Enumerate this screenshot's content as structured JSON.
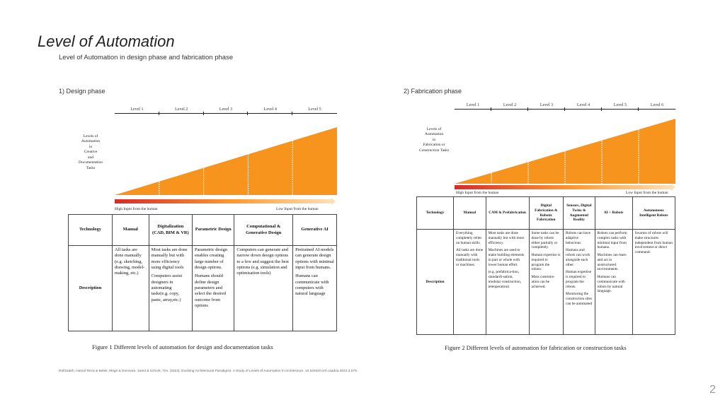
{
  "slide": {
    "title": "Level of Automation",
    "subtitle": "Level of Automation in design phase and fabrication phase",
    "footnote": "Rafizadeh, Hamid Reza & Belek, Müge & Donovan, Jared & Schork, Tim. (2024). Evolving Architectural Paradigms: A Study of Levels of Automation in Architecture. 10.52842/conf.caadria.2024.3.079.",
    "page_number": "2"
  },
  "design": {
    "heading": "1)   Design phase",
    "levels": [
      "Level 1",
      "Level 2",
      "Level 3",
      "Level 4",
      "Level 5"
    ],
    "side_label_lines": [
      "Levels of",
      "Automation",
      "in",
      "Creative",
      "and",
      "Documentation",
      "Tasks"
    ],
    "high_input": "High Input from the human",
    "low_input": "Low Input from the human",
    "table": {
      "technology_label": "Technology",
      "description_label": "Description",
      "columns": [
        {
          "header": "Manual",
          "desc": [
            "All tasks are done manually (e.g. sketching, drawing, model-making, etc.)"
          ]
        },
        {
          "header": "Digitalization (CAD, BIM & VR)",
          "desc": [
            "Most tasks are done manually but with more efficiency using digital tools",
            "Computers assist designers in automating tasks(e.g. copy, paste, array,etc.)"
          ]
        },
        {
          "header": "Parametric Design",
          "desc": [
            "Parametric design enables creating large number of design options.",
            "Humans should define design parameters and select the desired outcome from options"
          ]
        },
        {
          "header": "Computational & Generative Design",
          "desc": [
            "Computers can generate and narrow down design options to a few and suggest the best options (e.g. simulation and optimisation tools)"
          ]
        },
        {
          "header": "Generative AI",
          "desc": [
            "Pretrained AI models can generate design options with minimal input from humans.",
            "Humans can communicate with computers with natural language"
          ]
        }
      ]
    },
    "caption": "Figure 1 Different levels of automation for design and documentation tasks"
  },
  "fabrication": {
    "heading": "2)   Fabrication phase",
    "levels": [
      "Level 1",
      "Level 2",
      "Level 3",
      "Level 4",
      "Level 5",
      "Level 6"
    ],
    "side_label_lines": [
      "Levels of",
      "Automation",
      "in",
      "Fabrication or",
      "Construction Tasks"
    ],
    "high_input": "High Input from the human",
    "low_input": "Low Input from the human",
    "table": {
      "technology_label": "Technology",
      "description_label": "Description",
      "columns": [
        {
          "header": "Manual",
          "desc": [
            "Everything completely relies on human skills.",
            "All tasks are done manually with traditional tools or machines."
          ]
        },
        {
          "header": "CAM & Prefabrication",
          "desc": [
            "Most tasks are done manually but with more efficiency.",
            "Machines are used to make building elements in part or whole with lower human effort.",
            "(e.g. prefabrica-tion, standardi-sation, modular construction, teleoperation)"
          ]
        },
        {
          "header": "Digital Fabrication & Robotic Fabrication",
          "desc": [
            "Some tasks can be done by robots either partially or completely.",
            "Human expertise is required to program the robots.",
            "Mass customis-ation can be achieved."
          ]
        },
        {
          "header": "Sensors, Digital Twins & Augmented Reality",
          "desc": [
            "Robots can have adaptive behaviour.",
            "Humans and robots can work alongside each other.",
            "Human expertise is required to program the robots.",
            "Monitoring the construction sites can be automated"
          ]
        },
        {
          "header": "AI + Robots",
          "desc": [
            "Robots can perform complex tasks with minimal input from humans.",
            "Machines can learn and act in unstructured environments.",
            "Humans can communicate with robots by natural language."
          ]
        },
        {
          "header": "Autonomous Intelligent Robots",
          "desc": [
            "Swarms of robots will make structures independent from human involvement or direct command."
          ]
        }
      ]
    },
    "caption": "Figure 2 Different levels of automation for fabrication or construction tasks"
  },
  "colors": {
    "orange": "#f7941d",
    "orange_edge": "#ffffff",
    "gradient_start": "#d62b2b",
    "gradient_end": "#fde0b8"
  }
}
